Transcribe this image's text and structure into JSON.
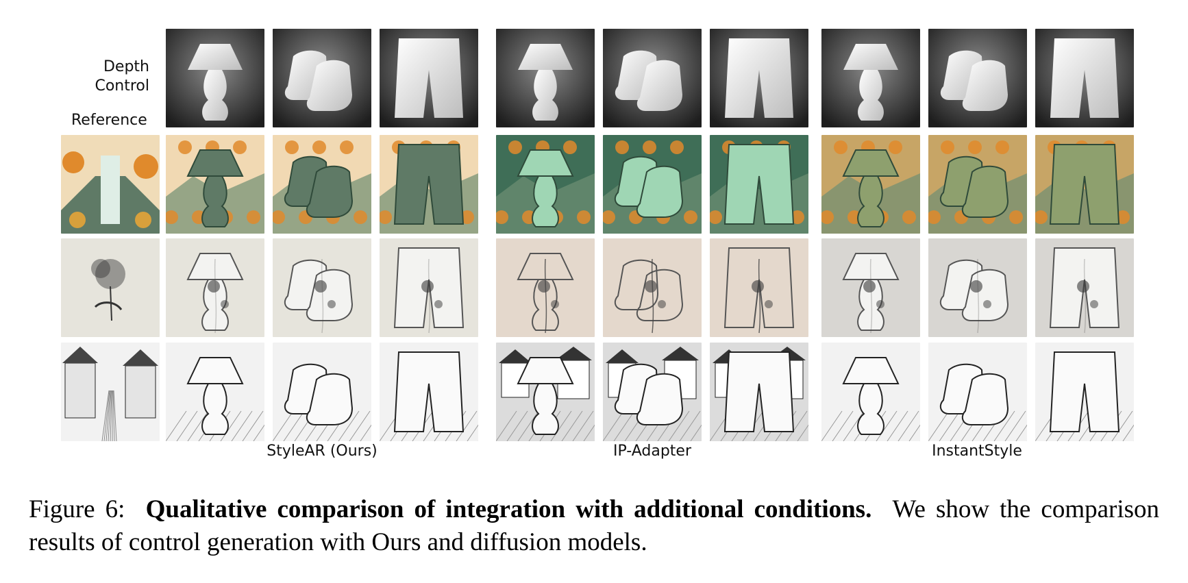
{
  "figure": {
    "row_labels": {
      "depth_line1": "Depth",
      "depth_line2": "Control",
      "reference": "Reference"
    },
    "methods": [
      "StyleAR (Ours)",
      "IP-Adapter",
      "InstantStyle"
    ],
    "objects": [
      "lamp",
      "boots",
      "shorts"
    ],
    "styles": [
      "autumn-waterfall",
      "ink-flower",
      "sketch-village"
    ]
  },
  "caption": {
    "prefix": "Figure 6:",
    "title": "Qualitative comparison of integration with additional conditions.",
    "body": "We show the comparison results of control generation with Ours and diffusion models."
  },
  "colors": {
    "autumn_green": "#5f7a66",
    "autumn_orange": "#e08a2c",
    "ink_paper": "#e6e4dc",
    "ink_warm_paper": "#e4d8cc",
    "sketch_paper": "#f2f2f2",
    "depth_dark": "#1e1e1e"
  }
}
